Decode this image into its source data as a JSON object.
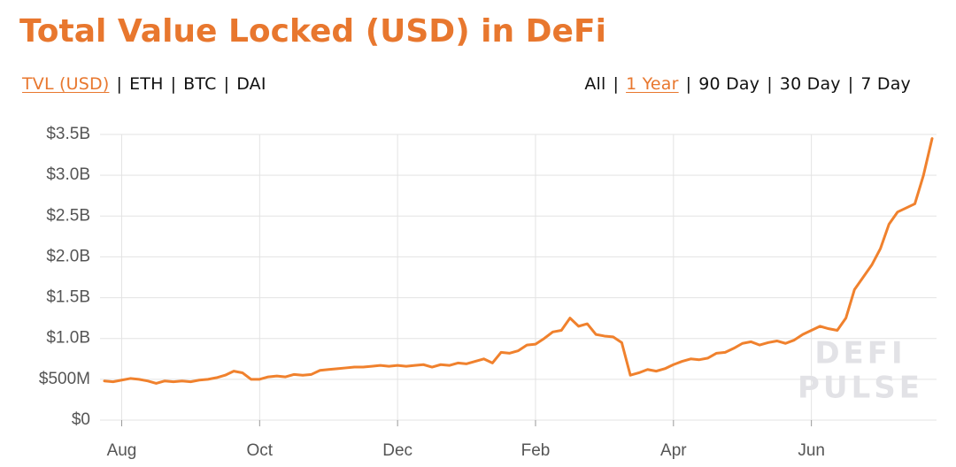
{
  "chart_data": {
    "type": "line",
    "title": "Total Value Locked (USD) in DeFi",
    "color": "#f0812d",
    "categories": [
      null,
      null,
      "Aug",
      null,
      null,
      null,
      null,
      null,
      null,
      null,
      null,
      null,
      null,
      null,
      null,
      null,
      null,
      null,
      "Oct",
      null,
      null,
      null,
      null,
      null,
      null,
      null,
      null,
      null,
      null,
      null,
      null,
      null,
      null,
      null,
      "Dec",
      null,
      null,
      null,
      null,
      null,
      null,
      null,
      null,
      null,
      null,
      null,
      null,
      null,
      null,
      null,
      "Feb",
      null,
      null,
      null,
      null,
      null,
      null,
      null,
      null,
      null,
      null,
      null,
      null,
      null,
      null,
      null,
      "Apr",
      null,
      null,
      null,
      null,
      null,
      null,
      null,
      null,
      null,
      null,
      null,
      null,
      null,
      null,
      null,
      "Jun",
      null,
      null,
      null,
      null,
      null,
      null,
      null,
      null,
      null,
      null,
      null,
      null,
      null,
      null
    ],
    "values": [
      480000000,
      470000000,
      490000000,
      510000000,
      500000000,
      480000000,
      450000000,
      480000000,
      470000000,
      480000000,
      470000000,
      490000000,
      500000000,
      520000000,
      550000000,
      600000000,
      580000000,
      500000000,
      500000000,
      530000000,
      540000000,
      530000000,
      560000000,
      550000000,
      560000000,
      610000000,
      620000000,
      630000000,
      640000000,
      650000000,
      650000000,
      660000000,
      670000000,
      660000000,
      670000000,
      660000000,
      670000000,
      680000000,
      650000000,
      680000000,
      670000000,
      700000000,
      690000000,
      720000000,
      750000000,
      700000000,
      830000000,
      820000000,
      850000000,
      920000000,
      930000000,
      1000000000,
      1080000000,
      1100000000,
      1250000000,
      1150000000,
      1180000000,
      1050000000,
      1030000000,
      1020000000,
      950000000,
      550000000,
      580000000,
      620000000,
      600000000,
      630000000,
      680000000,
      720000000,
      750000000,
      740000000,
      760000000,
      820000000,
      830000000,
      880000000,
      940000000,
      960000000,
      920000000,
      950000000,
      970000000,
      940000000,
      980000000,
      1050000000,
      1100000000,
      1150000000,
      1120000000,
      1100000000,
      1250000000,
      1600000000,
      1750000000,
      1900000000,
      2100000000,
      2400000000,
      2550000000,
      2600000000,
      2650000000,
      3000000000,
      3450000000
    ],
    "ylim": [
      0,
      3500000000
    ],
    "yticks": [
      {
        "value": 0,
        "label": "$0"
      },
      {
        "value": 500000000,
        "label": "$500M"
      },
      {
        "value": 1000000000,
        "label": "$1.0B"
      },
      {
        "value": 1500000000,
        "label": "$1.5B"
      },
      {
        "value": 2000000000,
        "label": "$2.0B"
      },
      {
        "value": 2500000000,
        "label": "$2.5B"
      },
      {
        "value": 3000000000,
        "label": "$3.0B"
      },
      {
        "value": 3500000000,
        "label": "$3.5B"
      }
    ],
    "grid": true,
    "watermark": [
      "DEFI",
      "PULSE"
    ]
  },
  "controls": {
    "separator": "|",
    "accent_color": "#e8772e",
    "metric_tabs": {
      "items": [
        "TVL (USD)",
        "ETH",
        "BTC",
        "DAI"
      ],
      "active": 0
    },
    "range_tabs": {
      "items": [
        "All",
        "1 Year",
        "90 Day",
        "30 Day",
        "7 Day"
      ],
      "active": 1
    }
  }
}
